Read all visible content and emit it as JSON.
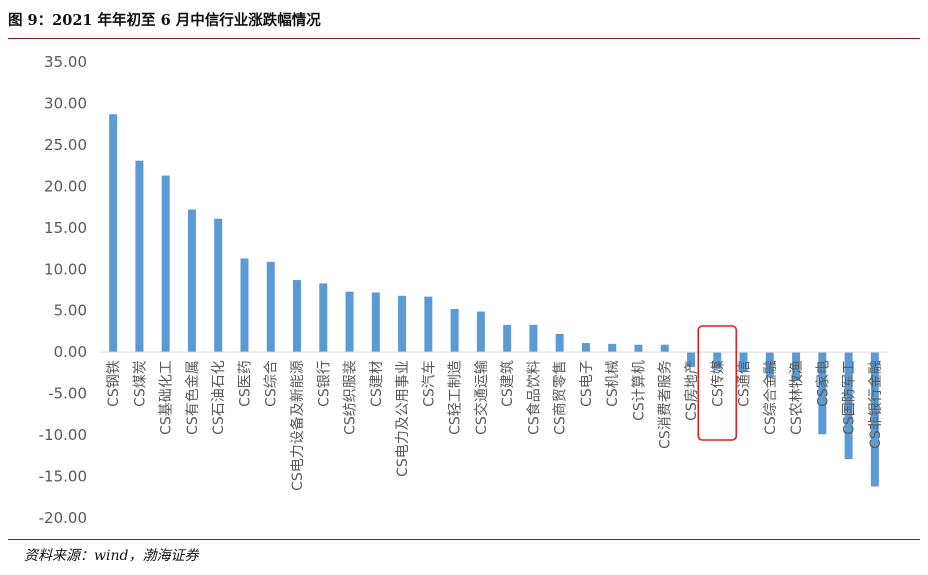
{
  "title": "图 9：2021 年年初至 6 月中信行业涨跌幅情况",
  "source": "资料来源：wind，渤海证券",
  "highlight": {
    "category": "CS传媒",
    "color": "#e02020"
  },
  "chart_data": {
    "type": "bar",
    "title": "图 9：2021 年年初至 6 月中信行业涨跌幅情况",
    "xlabel": "",
    "ylabel": "",
    "ylim": [
      -20,
      35
    ],
    "ytick_step": 5,
    "ytick_labels": [
      "35.00",
      "30.00",
      "25.00",
      "20.00",
      "15.00",
      "10.00",
      "5.00",
      "0.00",
      "-5.00",
      "-10.00",
      "-15.00",
      "-20.00"
    ],
    "grid": false,
    "legend": "none",
    "bar_color": "#5b9bd5",
    "categories": [
      "CS钢铁",
      "CS煤炭",
      "CS基础化工",
      "CS有色金属",
      "CS石油石化",
      "CS医药",
      "CS综合",
      "CS电力设备及新能源",
      "CS银行",
      "CS纺织服装",
      "CS建材",
      "CS电力及公用事业",
      "CS汽车",
      "CS轻工制造",
      "CS交通运输",
      "CS建筑",
      "CS食品饮料",
      "CS商贸零售",
      "CS电子",
      "CS机械",
      "CS计算机",
      "CS消费者服务",
      "CS房地产",
      "CS传媒",
      "CS通信",
      "CS综合金融",
      "CS农林牧渔",
      "CS家电",
      "CS国防军工",
      "CS非银行金融"
    ],
    "values": [
      28.7,
      23.1,
      21.3,
      17.2,
      16.1,
      11.3,
      10.9,
      8.7,
      8.3,
      7.3,
      7.2,
      6.8,
      6.7,
      5.2,
      4.9,
      3.3,
      3.3,
      2.2,
      1.1,
      1.0,
      0.9,
      0.9,
      -1.8,
      -2.0,
      -2.3,
      -3.1,
      -3.5,
      -9.9,
      -12.9,
      -16.2
    ]
  }
}
